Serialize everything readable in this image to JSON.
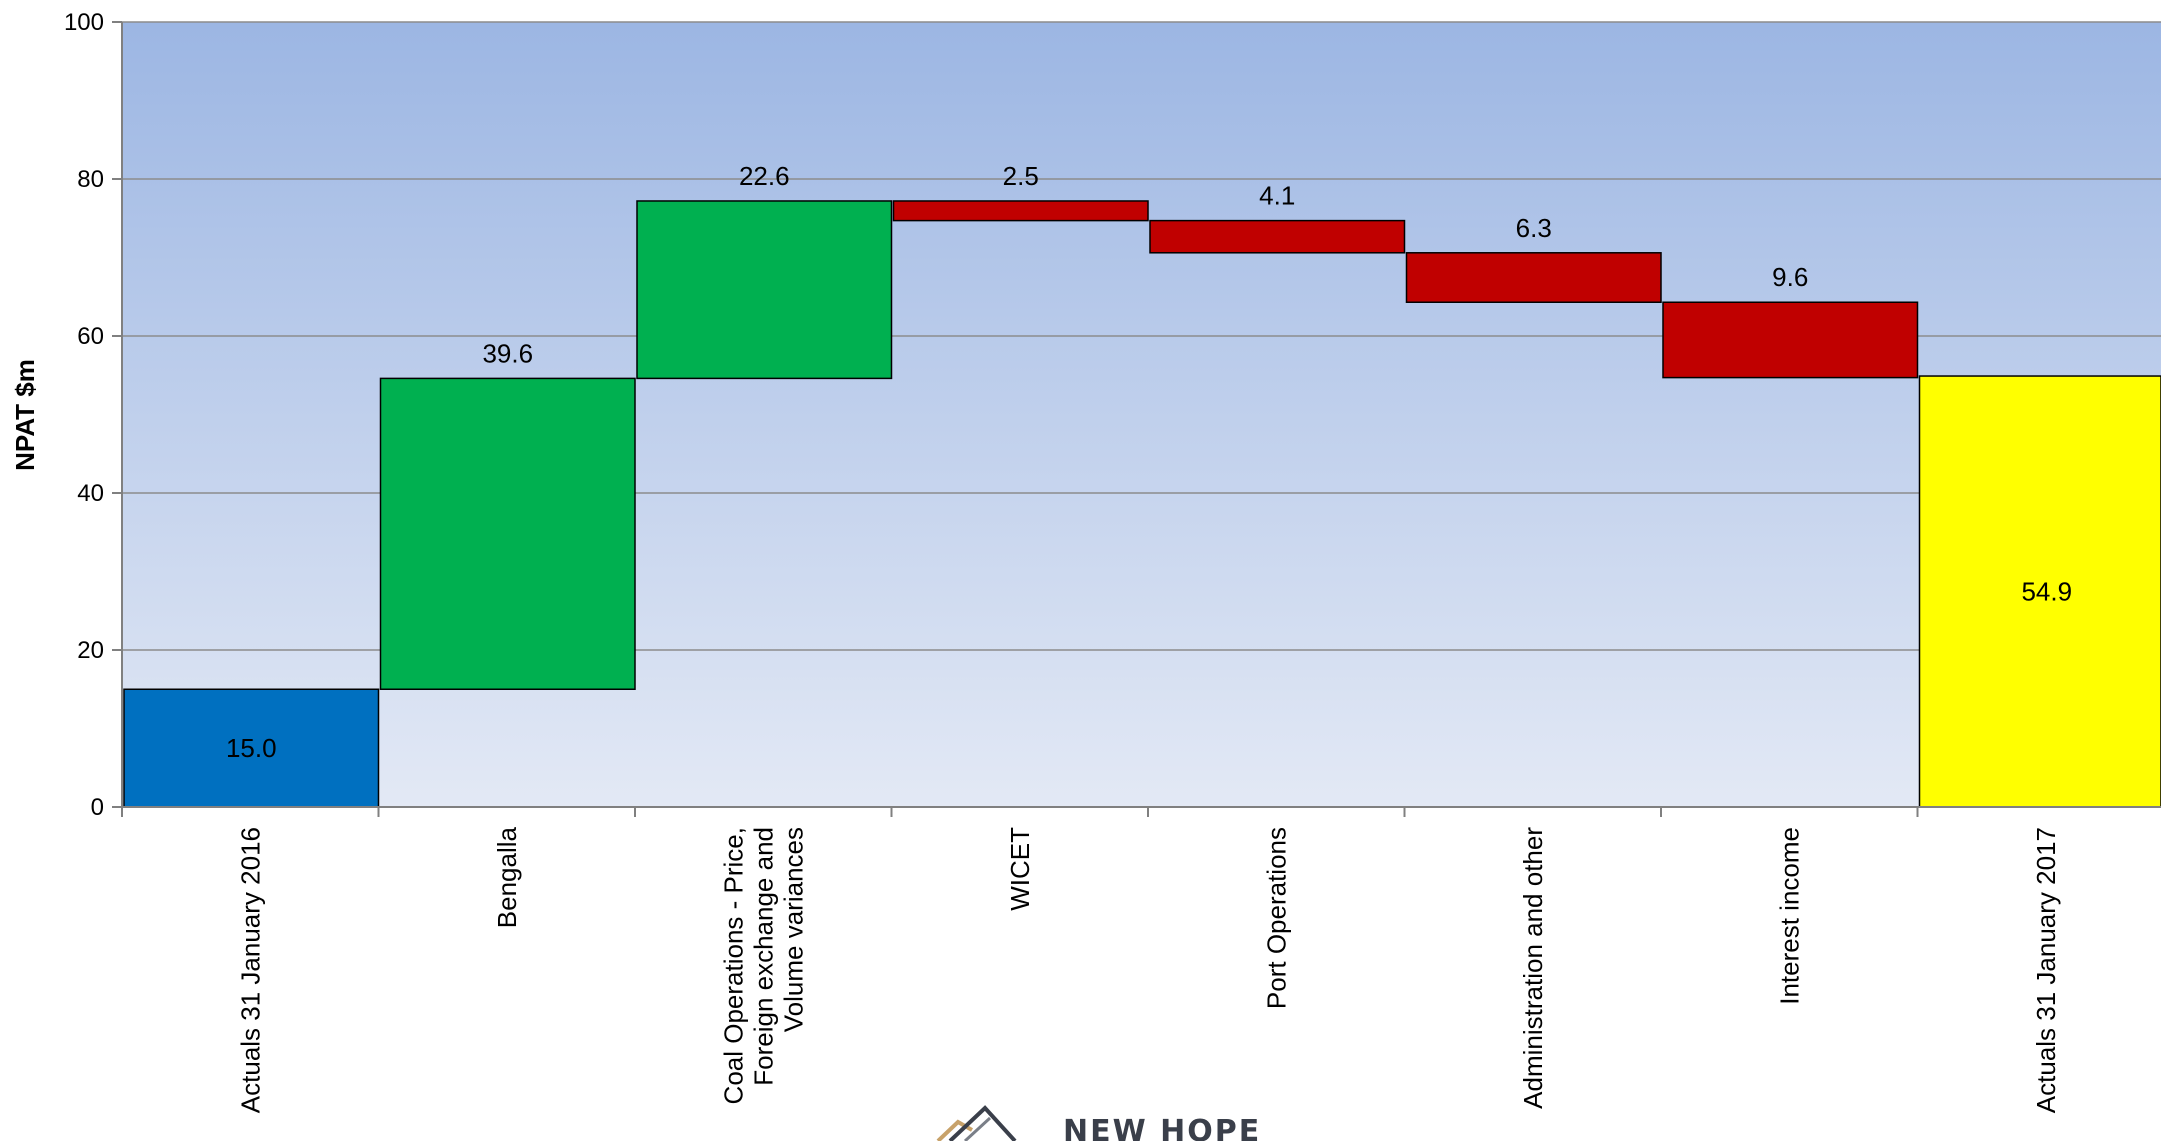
{
  "chart_data": {
    "type": "bar",
    "subtype": "waterfall",
    "ylabel": "NPAT $m",
    "ylim": [
      0,
      100
    ],
    "yticks": [
      0,
      20,
      40,
      60,
      80,
      100
    ],
    "grid": true,
    "categories": [
      [
        "Actuals 31 January 2016"
      ],
      [
        "Bengalla"
      ],
      [
        "Coal Operations - Price,",
        "Foreign exchange and",
        "Volume variances"
      ],
      [
        "WICET"
      ],
      [
        "Port Operations"
      ],
      [
        "Administration and other"
      ],
      [
        "Interest income"
      ],
      [
        "Actuals 31 January 2017"
      ]
    ],
    "bars": [
      {
        "kind": "total",
        "start": 0,
        "end": 15.0,
        "label": "15.0",
        "label_pos": "inside"
      },
      {
        "kind": "increase",
        "start": 15.0,
        "end": 54.6,
        "label": "39.6",
        "label_pos": "above"
      },
      {
        "kind": "increase",
        "start": 54.6,
        "end": 77.2,
        "label": "22.6",
        "label_pos": "above"
      },
      {
        "kind": "decrease",
        "start": 77.2,
        "end": 74.7,
        "label": "2.5",
        "label_pos": "above"
      },
      {
        "kind": "decrease",
        "start": 74.7,
        "end": 70.6,
        "label": "4.1",
        "label_pos": "above"
      },
      {
        "kind": "decrease",
        "start": 70.6,
        "end": 64.3,
        "label": "6.3",
        "label_pos": "above"
      },
      {
        "kind": "decrease",
        "start": 64.3,
        "end": 54.7,
        "label": "9.6",
        "label_pos": "above"
      },
      {
        "kind": "total",
        "start": 0,
        "end": 54.9,
        "label": "54.9",
        "label_pos": "inside"
      }
    ],
    "colors": {
      "total_start": "#0070c0",
      "increase": "#00b050",
      "decrease": "#c00000",
      "total_end": "#ffff00",
      "plot_top": "#9cb6e3",
      "plot_bottom": "#e3e9f5",
      "grid": "#8c8c8c",
      "axis": "#808080"
    }
  },
  "logo": {
    "text": "NEW HOPE",
    "icon": "mountain-logo-icon"
  }
}
